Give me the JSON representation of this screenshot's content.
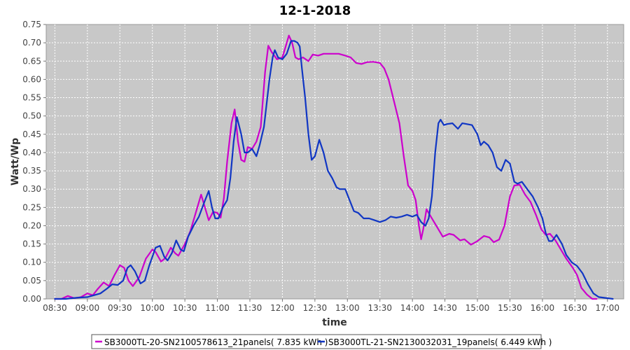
{
  "chart_data": {
    "type": "line",
    "title": "12-1-2018",
    "xlabel": "time",
    "ylabel": "Watt/Wp",
    "x_unit": "time of day (HH:MM)",
    "xlim": [
      "08:22",
      "17:15"
    ],
    "ylim": [
      0,
      0.75
    ],
    "x_ticks": [
      "08:30",
      "09:00",
      "09:30",
      "10:00",
      "10:30",
      "11:00",
      "11:30",
      "12:00",
      "12:30",
      "13:00",
      "13:30",
      "14:00",
      "14:30",
      "15:00",
      "15:30",
      "16:00",
      "16:30",
      "17:00"
    ],
    "y_ticks": [
      "0.00",
      "0.05",
      "0.10",
      "0.15",
      "0.20",
      "0.25",
      "0.30",
      "0.35",
      "0.40",
      "0.45",
      "0.50",
      "0.55",
      "0.60",
      "0.65",
      "0.70",
      "0.75"
    ],
    "grid": true,
    "legend_position": "bottom",
    "series": [
      {
        "name": "SB3000TL-20-SN2100578613_21panels( 7.835 kWh )",
        "color": "#cc00cc",
        "points": [
          [
            "08:30",
            0.0
          ],
          [
            "08:36",
            0.0
          ],
          [
            "08:42",
            0.008
          ],
          [
            "08:48",
            0.002
          ],
          [
            "08:54",
            0.005
          ],
          [
            "09:00",
            0.015
          ],
          [
            "09:05",
            0.01
          ],
          [
            "09:09",
            0.025
          ],
          [
            "09:15",
            0.045
          ],
          [
            "09:20",
            0.035
          ],
          [
            "09:25",
            0.065
          ],
          [
            "09:30",
            0.092
          ],
          [
            "09:34",
            0.085
          ],
          [
            "09:38",
            0.05
          ],
          [
            "09:42",
            0.035
          ],
          [
            "09:48",
            0.06
          ],
          [
            "09:54",
            0.11
          ],
          [
            "10:00",
            0.135
          ],
          [
            "10:03",
            0.128
          ],
          [
            "10:08",
            0.102
          ],
          [
            "10:12",
            0.112
          ],
          [
            "10:17",
            0.14
          ],
          [
            "10:21",
            0.125
          ],
          [
            "10:24",
            0.118
          ],
          [
            "10:30",
            0.15
          ],
          [
            "10:35",
            0.185
          ],
          [
            "10:40",
            0.235
          ],
          [
            "10:45",
            0.285
          ],
          [
            "10:48",
            0.255
          ],
          [
            "10:52",
            0.215
          ],
          [
            "10:56",
            0.238
          ],
          [
            "11:00",
            0.235
          ],
          [
            "11:03",
            0.222
          ],
          [
            "11:06",
            0.275
          ],
          [
            "11:09",
            0.375
          ],
          [
            "11:13",
            0.48
          ],
          [
            "11:16",
            0.518
          ],
          [
            "11:19",
            0.43
          ],
          [
            "11:22",
            0.38
          ],
          [
            "11:25",
            0.375
          ],
          [
            "11:28",
            0.415
          ],
          [
            "11:32",
            0.41
          ],
          [
            "11:36",
            0.43
          ],
          [
            "11:40",
            0.47
          ],
          [
            "11:44",
            0.62
          ],
          [
            "11:47",
            0.692
          ],
          [
            "11:50",
            0.675
          ],
          [
            "11:55",
            0.655
          ],
          [
            "12:00",
            0.66
          ],
          [
            "12:03",
            0.69
          ],
          [
            "12:06",
            0.72
          ],
          [
            "12:09",
            0.7
          ],
          [
            "12:12",
            0.66
          ],
          [
            "12:15",
            0.655
          ],
          [
            "12:19",
            0.66
          ],
          [
            "12:24",
            0.65
          ],
          [
            "12:28",
            0.668
          ],
          [
            "12:33",
            0.665
          ],
          [
            "12:38",
            0.67
          ],
          [
            "12:45",
            0.67
          ],
          [
            "12:52",
            0.67
          ],
          [
            "12:58",
            0.665
          ],
          [
            "13:03",
            0.66
          ],
          [
            "13:08",
            0.645
          ],
          [
            "13:13",
            0.642
          ],
          [
            "13:18",
            0.647
          ],
          [
            "13:24",
            0.648
          ],
          [
            "13:30",
            0.645
          ],
          [
            "13:34",
            0.63
          ],
          [
            "13:38",
            0.6
          ],
          [
            "13:43",
            0.54
          ],
          [
            "13:48",
            0.48
          ],
          [
            "13:52",
            0.39
          ],
          [
            "13:56",
            0.31
          ],
          [
            "14:00",
            0.295
          ],
          [
            "14:03",
            0.27
          ],
          [
            "14:06",
            0.2
          ],
          [
            "14:08",
            0.163
          ],
          [
            "14:10",
            0.19
          ],
          [
            "14:13",
            0.245
          ],
          [
            "14:16",
            0.23
          ],
          [
            "14:20",
            0.21
          ],
          [
            "14:25",
            0.185
          ],
          [
            "14:28",
            0.17
          ],
          [
            "14:34",
            0.178
          ],
          [
            "14:38",
            0.175
          ],
          [
            "14:44",
            0.16
          ],
          [
            "14:48",
            0.163
          ],
          [
            "14:54",
            0.148
          ],
          [
            "15:00",
            0.158
          ],
          [
            "15:06",
            0.172
          ],
          [
            "15:11",
            0.168
          ],
          [
            "15:15",
            0.155
          ],
          [
            "15:20",
            0.162
          ],
          [
            "15:25",
            0.2
          ],
          [
            "15:30",
            0.28
          ],
          [
            "15:34",
            0.31
          ],
          [
            "15:39",
            0.312
          ],
          [
            "15:44",
            0.285
          ],
          [
            "15:49",
            0.265
          ],
          [
            "15:54",
            0.23
          ],
          [
            "15:59",
            0.19
          ],
          [
            "16:03",
            0.175
          ],
          [
            "16:07",
            0.178
          ],
          [
            "16:12",
            0.16
          ],
          [
            "16:17",
            0.135
          ],
          [
            "16:22",
            0.11
          ],
          [
            "16:28",
            0.085
          ],
          [
            "16:32",
            0.065
          ],
          [
            "16:36",
            0.03
          ],
          [
            "16:41",
            0.012
          ],
          [
            "16:46",
            0.0
          ],
          [
            "16:50",
            0.0
          ]
        ]
      },
      {
        "name": "SB3000TL-21-SN2130032031_19panels( 6.449 kWh )",
        "color": "#1036c4",
        "points": [
          [
            "08:30",
            0.0
          ],
          [
            "08:40",
            0.0
          ],
          [
            "08:50",
            0.003
          ],
          [
            "09:00",
            0.005
          ],
          [
            "09:06",
            0.01
          ],
          [
            "09:12",
            0.015
          ],
          [
            "09:18",
            0.028
          ],
          [
            "09:23",
            0.04
          ],
          [
            "09:28",
            0.038
          ],
          [
            "09:33",
            0.05
          ],
          [
            "09:37",
            0.085
          ],
          [
            "09:40",
            0.092
          ],
          [
            "09:44",
            0.075
          ],
          [
            "09:49",
            0.042
          ],
          [
            "09:53",
            0.05
          ],
          [
            "09:57",
            0.09
          ],
          [
            "10:03",
            0.14
          ],
          [
            "10:07",
            0.145
          ],
          [
            "10:11",
            0.115
          ],
          [
            "10:14",
            0.105
          ],
          [
            "10:18",
            0.125
          ],
          [
            "10:22",
            0.16
          ],
          [
            "10:26",
            0.135
          ],
          [
            "10:29",
            0.13
          ],
          [
            "10:33",
            0.17
          ],
          [
            "10:38",
            0.2
          ],
          [
            "10:43",
            0.225
          ],
          [
            "10:48",
            0.265
          ],
          [
            "10:52",
            0.295
          ],
          [
            "10:55",
            0.25
          ],
          [
            "10:58",
            0.22
          ],
          [
            "11:01",
            0.22
          ],
          [
            "11:05",
            0.25
          ],
          [
            "11:09",
            0.27
          ],
          [
            "11:12",
            0.33
          ],
          [
            "11:15",
            0.43
          ],
          [
            "11:18",
            0.497
          ],
          [
            "11:22",
            0.45
          ],
          [
            "11:25",
            0.4
          ],
          [
            "11:28",
            0.4
          ],
          [
            "11:32",
            0.41
          ],
          [
            "11:36",
            0.39
          ],
          [
            "11:39",
            0.42
          ],
          [
            "11:43",
            0.47
          ],
          [
            "11:48",
            0.6
          ],
          [
            "11:51",
            0.66
          ],
          [
            "11:53",
            0.68
          ],
          [
            "11:56",
            0.66
          ],
          [
            "12:00",
            0.655
          ],
          [
            "12:04",
            0.67
          ],
          [
            "12:08",
            0.705
          ],
          [
            "12:11",
            0.705
          ],
          [
            "12:14",
            0.7
          ],
          [
            "12:16",
            0.69
          ],
          [
            "12:18",
            0.63
          ],
          [
            "12:21",
            0.55
          ],
          [
            "12:24",
            0.45
          ],
          [
            "12:27",
            0.38
          ],
          [
            "12:30",
            0.39
          ],
          [
            "12:34",
            0.435
          ],
          [
            "12:38",
            0.4
          ],
          [
            "12:42",
            0.35
          ],
          [
            "12:46",
            0.33
          ],
          [
            "12:50",
            0.305
          ],
          [
            "12:53",
            0.3
          ],
          [
            "12:58",
            0.3
          ],
          [
            "13:02",
            0.27
          ],
          [
            "13:06",
            0.24
          ],
          [
            "13:10",
            0.235
          ],
          [
            "13:15",
            0.22
          ],
          [
            "13:20",
            0.22
          ],
          [
            "13:25",
            0.215
          ],
          [
            "13:30",
            0.21
          ],
          [
            "13:35",
            0.215
          ],
          [
            "13:40",
            0.225
          ],
          [
            "13:45",
            0.222
          ],
          [
            "13:50",
            0.225
          ],
          [
            "13:55",
            0.23
          ],
          [
            "14:00",
            0.225
          ],
          [
            "14:04",
            0.23
          ],
          [
            "14:08",
            0.21
          ],
          [
            "14:12",
            0.2
          ],
          [
            "14:15",
            0.22
          ],
          [
            "14:18",
            0.28
          ],
          [
            "14:21",
            0.4
          ],
          [
            "14:24",
            0.48
          ],
          [
            "14:26",
            0.49
          ],
          [
            "14:29",
            0.475
          ],
          [
            "14:32",
            0.478
          ],
          [
            "14:37",
            0.48
          ],
          [
            "14:42",
            0.465
          ],
          [
            "14:46",
            0.48
          ],
          [
            "14:50",
            0.478
          ],
          [
            "14:55",
            0.475
          ],
          [
            "15:00",
            0.45
          ],
          [
            "15:03",
            0.42
          ],
          [
            "15:06",
            0.43
          ],
          [
            "15:10",
            0.42
          ],
          [
            "15:14",
            0.4
          ],
          [
            "15:18",
            0.36
          ],
          [
            "15:22",
            0.35
          ],
          [
            "15:26",
            0.38
          ],
          [
            "15:30",
            0.37
          ],
          [
            "15:34",
            0.32
          ],
          [
            "15:37",
            0.315
          ],
          [
            "15:41",
            0.32
          ],
          [
            "15:46",
            0.3
          ],
          [
            "15:51",
            0.28
          ],
          [
            "15:56",
            0.25
          ],
          [
            "16:00",
            0.22
          ],
          [
            "16:03",
            0.18
          ],
          [
            "16:06",
            0.158
          ],
          [
            "16:09",
            0.158
          ],
          [
            "16:13",
            0.175
          ],
          [
            "16:18",
            0.15
          ],
          [
            "16:22",
            0.12
          ],
          [
            "16:27",
            0.1
          ],
          [
            "16:32",
            0.09
          ],
          [
            "16:37",
            0.07
          ],
          [
            "16:42",
            0.04
          ],
          [
            "16:47",
            0.015
          ],
          [
            "16:52",
            0.005
          ],
          [
            "17:00",
            0.002
          ],
          [
            "17:05",
            0.0
          ]
        ]
      }
    ]
  }
}
